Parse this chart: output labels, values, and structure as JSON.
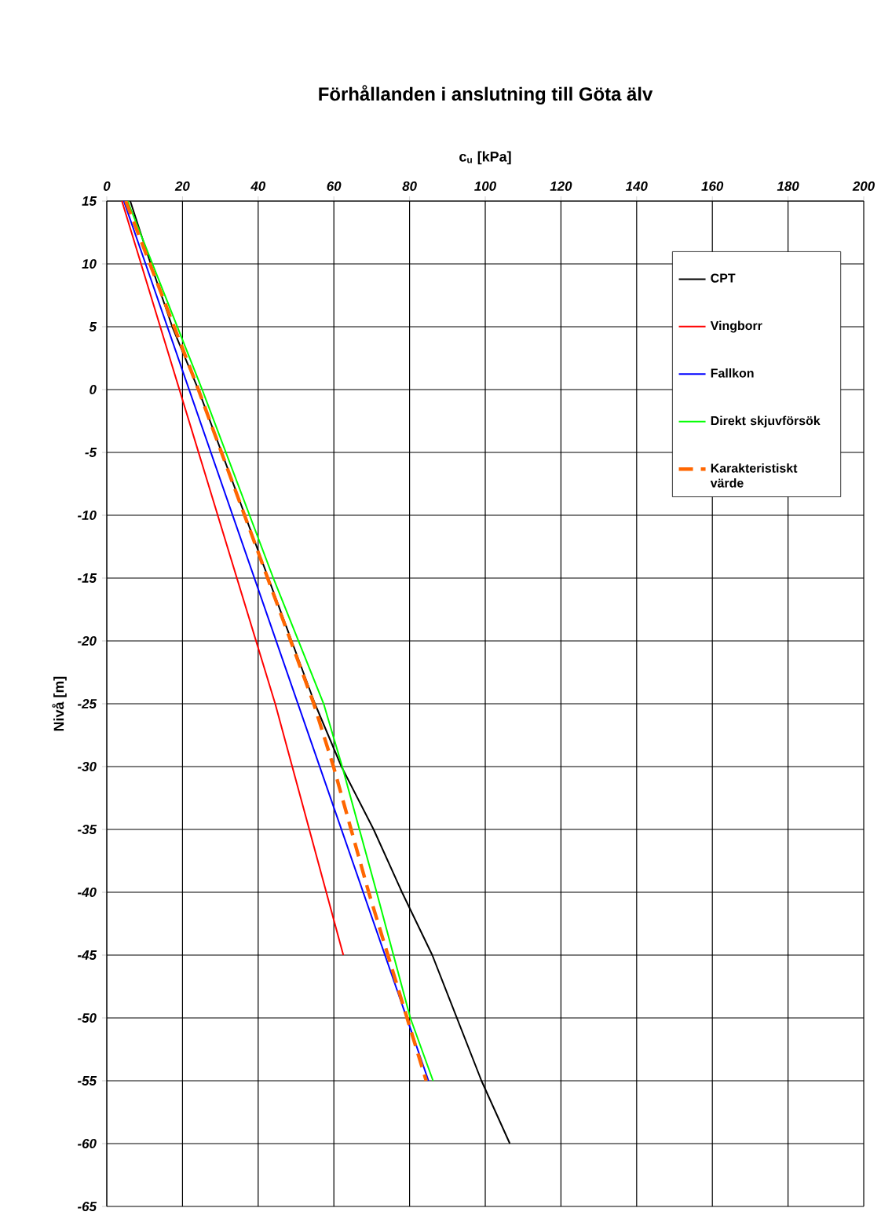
{
  "chart_data": {
    "type": "line",
    "title": "Förhållanden i anslutning till Göta älv",
    "xlabel": "c$_{u}$ [kPa]",
    "ylabel": "Nivå [m]",
    "xlim": [
      0,
      200
    ],
    "xticks": [
      0,
      20,
      40,
      60,
      80,
      100,
      120,
      140,
      160,
      180,
      200
    ],
    "ylim": [
      -65,
      15
    ],
    "yticks": [
      15,
      10,
      5,
      0,
      -5,
      -10,
      -15,
      -20,
      -25,
      -30,
      -35,
      -40,
      -45,
      -50,
      -55,
      -60,
      -65
    ],
    "grid": true,
    "legend": "top right",
    "line_style": "solid",
    "marker": "none",
    "series": [
      {
        "name": "CPT",
        "color": "#000000",
        "x": [
          6.2,
          11.6,
          17.3,
          24.2,
          55,
          62,
          70.5,
          78,
          86,
          99,
          106.5
        ],
        "values": [
          15,
          10,
          5,
          0,
          -25,
          -30,
          -35,
          -40,
          -45,
          -55,
          -60
        ]
      },
      {
        "name": "Vingborr",
        "color": "#ff0000",
        "x": [
          4,
          44.5,
          53.5,
          62.5
        ],
        "values": [
          15,
          -25,
          -35,
          -45
        ]
      },
      {
        "name": "Fallkon",
        "color": "#0000ff",
        "x": [
          4.5,
          85
        ],
        "values": [
          15,
          -55
        ]
      },
      {
        "name": "Direkt skjuvförsök",
        "color": "#00ff00",
        "x": [
          5.5,
          25.2,
          44,
          57.3,
          62.2,
          71.3,
          80.2,
          86.2
        ],
        "values": [
          15,
          0,
          -15,
          -25,
          -30,
          -40,
          -50,
          -55
        ]
      },
      {
        "name": "Karakteristiskt värde",
        "color": "#ff6600",
        "line_style": "dashed",
        "x": [
          5,
          24.2,
          54.7,
          59.9,
          69.2,
          84.4
        ],
        "values": [
          15,
          0,
          -25,
          -30,
          -40,
          -55
        ]
      }
    ]
  }
}
